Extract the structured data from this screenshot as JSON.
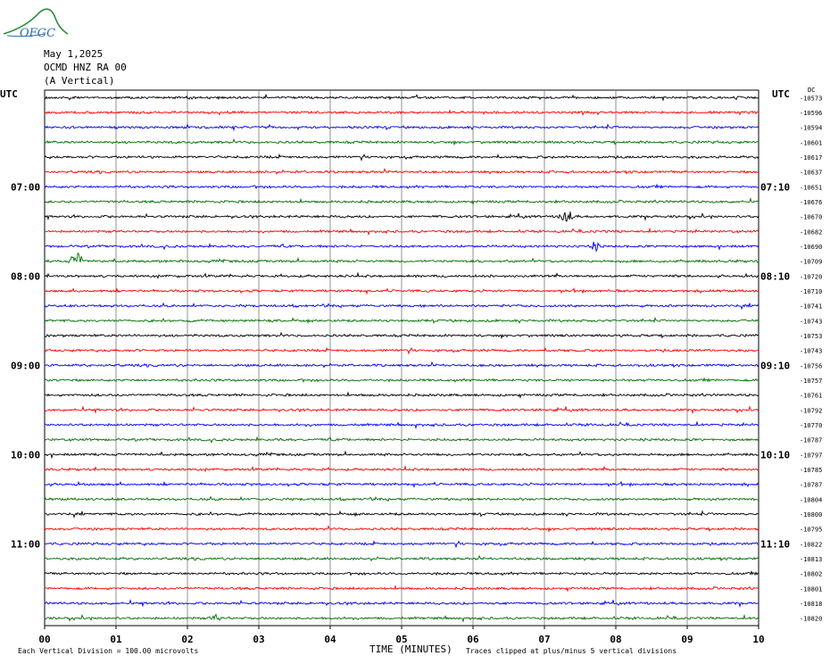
{
  "header": {
    "logo_text": "OFGC",
    "date": "May 1,2025",
    "station": "OCMD HNZ RA 00",
    "component": "(A Vertical)",
    "left_tz": "UTC",
    "right_tz": "UTC",
    "right_corner": "DC"
  },
  "footer": {
    "xlabel": "TIME (MINUTES)",
    "scale_note": "Each Vertical Division =  100.00 microvolts",
    "clip_note": "Traces clipped at plus/minus 5 vertical divisions"
  },
  "chart_data": {
    "type": "line",
    "title": "OCMD HNZ RA 00 (A Vertical)",
    "xlabel": "TIME (MINUTES)",
    "xlim": [
      0,
      10
    ],
    "x_ticks": [
      "00",
      "01",
      "02",
      "03",
      "04",
      "05",
      "06",
      "07",
      "08",
      "09",
      "10"
    ],
    "grid": true,
    "trace_colors": [
      "#000000",
      "#ff0000",
      "#0000ff",
      "#007000"
    ],
    "left_time_labels": [
      {
        "row": 6,
        "label": "07:00"
      },
      {
        "row": 12,
        "label": "08:00"
      },
      {
        "row": 18,
        "label": "09:00"
      },
      {
        "row": 24,
        "label": "10:00"
      },
      {
        "row": 30,
        "label": "11:00"
      }
    ],
    "right_time_labels": [
      {
        "row": 6,
        "label": "07:10"
      },
      {
        "row": 12,
        "label": "08:10"
      },
      {
        "row": 18,
        "label": "09:10"
      },
      {
        "row": 24,
        "label": "10:10"
      },
      {
        "row": 30,
        "label": "11:10"
      }
    ],
    "trace_offsets": [
      "-10573",
      "-10596",
      "-10594",
      "-10601",
      "-10617",
      "-10637",
      "-10651",
      "-10676",
      "-10670",
      "-10682",
      "-10690",
      "-10709",
      "-10720",
      "-10710",
      "-10741",
      "-10743",
      "-10753",
      "-10743",
      "-10756",
      "-10757",
      "-10761",
      "-10792",
      "-10770",
      "-10787",
      "-10797",
      "-10785",
      "-10787",
      "-10804",
      "-10800",
      "-10795",
      "-10822",
      "-10813",
      "-10802",
      "-10801",
      "-10818",
      "-10820"
    ],
    "events": [
      {
        "row": 9,
        "minute": 7.3,
        "amplitude": 3.2
      },
      {
        "row": 12,
        "minute": 0.45,
        "amplitude": 4.0
      },
      {
        "row": 11,
        "minute": 7.7,
        "amplitude": 1.6
      },
      {
        "row": 36,
        "minute": 2.4,
        "amplitude": 1.2
      }
    ]
  }
}
